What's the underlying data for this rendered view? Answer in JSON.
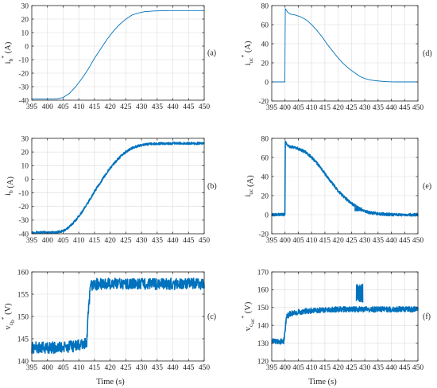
{
  "figure": {
    "colors": {
      "line": "#0072BD",
      "axis": "#262626",
      "grid": "#dcdcdc"
    },
    "x_label": "Time (s)"
  },
  "chart_data": [
    {
      "id": "a",
      "tag": "(a)",
      "type": "line",
      "ylabel": {
        "base": "i",
        "sub": "b",
        "sup": "*",
        "unit": "(A)"
      },
      "xlim": [
        395,
        450
      ],
      "ylim": [
        -40,
        30
      ],
      "xticks": [
        395,
        400,
        405,
        410,
        415,
        420,
        425,
        430,
        435,
        440,
        445,
        450
      ],
      "yticks": [
        -40,
        -30,
        -20,
        -10,
        0,
        10,
        20,
        30
      ],
      "grid": true,
      "noise": 0,
      "series": [
        {
          "x": [
            395,
            403,
            405,
            407,
            409,
            411,
            413,
            415,
            417,
            419,
            421,
            423,
            425,
            427,
            429,
            431,
            434,
            437,
            440,
            450
          ],
          "y": [
            -39,
            -39,
            -38,
            -35,
            -30,
            -24,
            -17,
            -9,
            -2,
            5,
            11,
            16,
            20,
            23,
            24.5,
            25.5,
            26,
            26.2,
            26.3,
            26.3
          ]
        }
      ]
    },
    {
      "id": "b",
      "tag": "(b)",
      "type": "line",
      "ylabel": {
        "base": "i",
        "sub": "b",
        "sup": "",
        "unit": "(A)"
      },
      "xlim": [
        395,
        450
      ],
      "ylim": [
        -40,
        30
      ],
      "xticks": [
        395,
        400,
        405,
        410,
        415,
        420,
        425,
        430,
        435,
        440,
        445,
        450
      ],
      "yticks": [
        -40,
        -30,
        -20,
        -10,
        0,
        10,
        20,
        30
      ],
      "grid": true,
      "noise": 0.8,
      "series": [
        {
          "x": [
            395,
            403,
            405,
            407,
            409,
            411,
            413,
            415,
            417,
            419,
            421,
            423,
            425,
            427,
            429,
            431,
            434,
            437,
            440,
            450
          ],
          "y": [
            -39,
            -39,
            -38,
            -35,
            -30,
            -24,
            -17,
            -9,
            -2,
            5,
            11,
            16,
            20,
            23,
            24.5,
            25.5,
            26,
            26.2,
            26.3,
            26.3
          ]
        }
      ]
    },
    {
      "id": "c",
      "tag": "(c)",
      "type": "line",
      "ylabel": {
        "base": "v",
        "sub": "c",
        "subsub": "b",
        "sup": "*",
        "unit": "(V)"
      },
      "xlim": [
        395,
        450
      ],
      "ylim": [
        140,
        160
      ],
      "xticks": [
        395,
        400,
        405,
        410,
        415,
        420,
        425,
        430,
        435,
        440,
        445,
        450
      ],
      "yticks": [
        140,
        145,
        150,
        155,
        160
      ],
      "grid": true,
      "noise": 1.3,
      "series": [
        {
          "x": [
            395,
            405,
            410,
            412.5,
            413,
            413.5,
            414,
            415,
            420,
            430,
            440,
            450
          ],
          "y": [
            143,
            143,
            143.5,
            144,
            150,
            155,
            157,
            157.2,
            157.3,
            157.3,
            157.3,
            157.3
          ]
        }
      ]
    },
    {
      "id": "d",
      "tag": "(d)",
      "type": "line",
      "ylabel": {
        "base": "i",
        "sub": "uc",
        "sup": "*",
        "unit": "(A)"
      },
      "xlim": [
        395,
        450
      ],
      "ylim": [
        -20,
        80
      ],
      "xticks": [
        395,
        400,
        405,
        410,
        415,
        420,
        425,
        430,
        435,
        440,
        445,
        450
      ],
      "yticks": [
        -20,
        0,
        20,
        40,
        60,
        80
      ],
      "grid": true,
      "noise": 0,
      "series": [
        {
          "x": [
            395,
            400,
            400.05,
            401,
            402,
            404,
            406,
            408,
            410,
            412,
            414,
            416,
            418,
            420,
            422,
            424,
            426,
            428,
            430,
            432,
            435,
            438,
            441,
            445,
            450
          ],
          "y": [
            0,
            0,
            77,
            73,
            71,
            70,
            68,
            65,
            60,
            54,
            47,
            39,
            32,
            25,
            19,
            14,
            10,
            6,
            3.5,
            2,
            1,
            0.3,
            0,
            0,
            0
          ]
        }
      ]
    },
    {
      "id": "e",
      "tag": "(e)",
      "type": "line",
      "ylabel": {
        "base": "i",
        "sub": "uc",
        "sup": "",
        "unit": "(A)"
      },
      "xlim": [
        395,
        450
      ],
      "ylim": [
        -20,
        80
      ],
      "xticks": [
        395,
        400,
        405,
        410,
        415,
        420,
        425,
        430,
        435,
        440,
        445,
        450
      ],
      "yticks": [
        -20,
        0,
        20,
        40,
        60,
        80
      ],
      "grid": true,
      "noise": 1.4,
      "series": [
        {
          "x": [
            395,
            400,
            400.05,
            401,
            402,
            404,
            406,
            408,
            410,
            412,
            414,
            416,
            418,
            420,
            422,
            424,
            426,
            428,
            430,
            432,
            435,
            438,
            441,
            445,
            450
          ],
          "y": [
            0,
            0,
            77,
            73,
            71,
            70,
            68,
            65,
            60,
            54,
            47,
            39,
            32,
            25,
            19,
            14,
            10,
            6,
            3.5,
            2,
            1,
            0.3,
            0,
            0,
            0
          ]
        }
      ],
      "spikes": [
        {
          "x0": 426.3,
          "x1": 428.8,
          "y": 5.5,
          "amp": 2
        }
      ]
    },
    {
      "id": "f",
      "tag": "(f)",
      "type": "line",
      "ylabel": {
        "base": "v",
        "sub": "c",
        "subsub": "uc",
        "sup": "*",
        "unit": "(V)"
      },
      "xlim": [
        395,
        450
      ],
      "ylim": [
        120,
        170
      ],
      "xticks": [
        395,
        400,
        405,
        410,
        415,
        420,
        425,
        430,
        435,
        440,
        445,
        450
      ],
      "yticks": [
        120,
        130,
        140,
        150,
        160,
        170
      ],
      "grid": true,
      "noise": 1.5,
      "series": [
        {
          "x": [
            395,
            399.5,
            400.2,
            400.6,
            402,
            405,
            410,
            415,
            420,
            425,
            430,
            440,
            450
          ],
          "y": [
            131,
            131,
            140,
            145,
            146.5,
            147.5,
            148.3,
            148.8,
            149,
            149,
            149,
            149,
            149
          ]
        }
      ],
      "spikes": [
        {
          "x0": 426.8,
          "x1": 429.3,
          "y": 158,
          "amp": 5
        }
      ]
    }
  ]
}
